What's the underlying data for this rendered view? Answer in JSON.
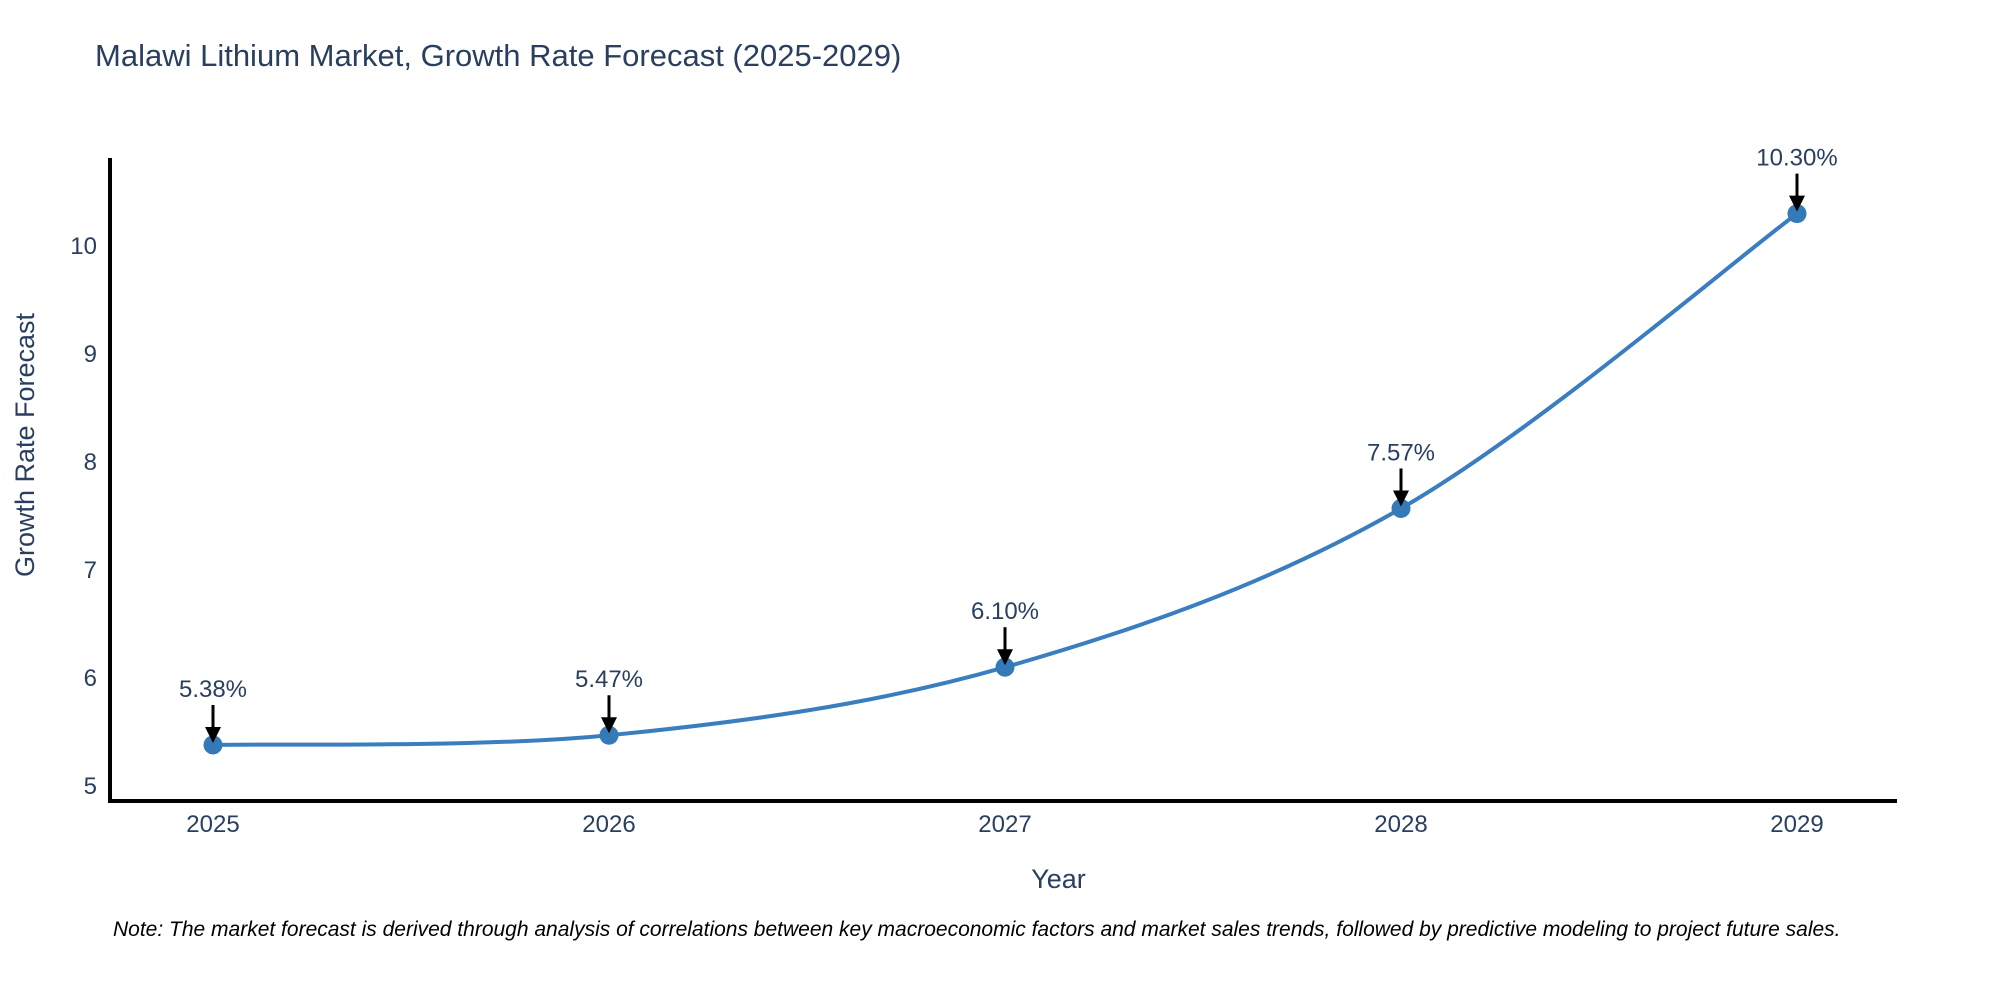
{
  "title": "Malawi Lithium Market, Growth Rate Forecast (2025-2029)",
  "note": "Note: The market forecast is derived through analysis of correlations between key macroeconomic factors and market sales trends, followed by predictive modeling to project future sales.",
  "colors": {
    "line": "#3a7ebf",
    "marker": "#347ab8",
    "title_text": "#2a3f5f",
    "tick_text": "#2a3f5f",
    "annotation_text": "#2a3f5f",
    "axis_line": "#000000",
    "arrow": "#000000",
    "background": "#ffffff"
  },
  "chart_data": {
    "type": "line",
    "line_shape": "spline",
    "x": [
      2025,
      2026,
      2027,
      2028,
      2029
    ],
    "values": [
      5.38,
      5.47,
      6.1,
      7.57,
      10.3
    ],
    "point_labels": [
      "5.38%",
      "5.47%",
      "6.10%",
      "7.57%",
      "10.30%"
    ],
    "title": "Malawi Lithium Market, Growth Rate Forecast (2025-2029)",
    "xlabel": "Year",
    "ylabel": "Growth Rate Forecast",
    "xticklabels": [
      "2025",
      "2026",
      "2027",
      "2028",
      "2029"
    ],
    "yticks": [
      5,
      6,
      7,
      8,
      9,
      10
    ],
    "xlim": [
      2024.74,
      2029.25
    ],
    "ylim": [
      4.86,
      10.95
    ],
    "grid": false,
    "legend": false,
    "annotations_have_arrows": true
  }
}
